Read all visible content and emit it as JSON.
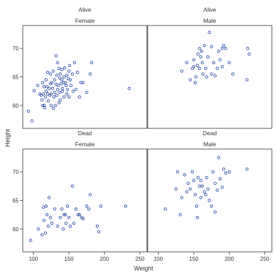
{
  "chart_data": {
    "type": "scatter",
    "layout": "2x2 panel grid with shared axes",
    "xlabel": "Weight",
    "ylabel": "Height",
    "xlim": [
      85,
      260
    ],
    "ylim": [
      56,
      74
    ],
    "x_ticks": [
      100,
      150,
      200,
      250
    ],
    "y_ticks": [
      60,
      65,
      70
    ],
    "grid": false,
    "marker_color": "#2E4FA8",
    "panels": [
      {
        "row_label": "Alive",
        "col_label": "Female",
        "points": [
          [
            93,
            59
          ],
          [
            98,
            57.3
          ],
          [
            101,
            62.6
          ],
          [
            106,
            63.5
          ],
          [
            109,
            62
          ],
          [
            111,
            61.8
          ],
          [
            112,
            61
          ],
          [
            113,
            60
          ],
          [
            113,
            64
          ],
          [
            114,
            62
          ],
          [
            115,
            63.3
          ],
          [
            115,
            60
          ],
          [
            116,
            59.6
          ],
          [
            117,
            61.5
          ],
          [
            118,
            64.5
          ],
          [
            118,
            62.5
          ],
          [
            119,
            63.3
          ],
          [
            120,
            62
          ],
          [
            120,
            65.8
          ],
          [
            121,
            60.8
          ],
          [
            122,
            63
          ],
          [
            123,
            61.8
          ],
          [
            124,
            65.5
          ],
          [
            124,
            63.8
          ],
          [
            125,
            62
          ],
          [
            125,
            60
          ],
          [
            126,
            64
          ],
          [
            127,
            63
          ],
          [
            128,
            66
          ],
          [
            128,
            59.5
          ],
          [
            129,
            61.5
          ],
          [
            130,
            62.3
          ],
          [
            130,
            64.5
          ],
          [
            131,
            60
          ],
          [
            132,
            68.7
          ],
          [
            132,
            63.7
          ],
          [
            133,
            65.3
          ],
          [
            133,
            61.8
          ],
          [
            134,
            67.5
          ],
          [
            134,
            62.8
          ],
          [
            135,
            63.5
          ],
          [
            136,
            66.5
          ],
          [
            136,
            60.5
          ],
          [
            137,
            64.8
          ],
          [
            137,
            62.3
          ],
          [
            138,
            65.5
          ],
          [
            138,
            61
          ],
          [
            139,
            63.8
          ],
          [
            140,
            64.5
          ],
          [
            140,
            66.3
          ],
          [
            141,
            63
          ],
          [
            141,
            62.5
          ],
          [
            142,
            64
          ],
          [
            143,
            65
          ],
          [
            143,
            61.5
          ],
          [
            144,
            66.6
          ],
          [
            145,
            64
          ],
          [
            146,
            63.5
          ],
          [
            147,
            62
          ],
          [
            147,
            65.3
          ],
          [
            148,
            62.8
          ],
          [
            149,
            64.7
          ],
          [
            150,
            66
          ],
          [
            150,
            61.5
          ],
          [
            151,
            67
          ],
          [
            152,
            64.5
          ],
          [
            153,
            63.5
          ],
          [
            155,
            65.5
          ],
          [
            156,
            62.5
          ],
          [
            158,
            67.5
          ],
          [
            160,
            62.8
          ],
          [
            162,
            65.8
          ],
          [
            165,
            61.5
          ],
          [
            167,
            64
          ],
          [
            170,
            64
          ],
          [
            175,
            62.3
          ],
          [
            180,
            65.5
          ],
          [
            182,
            67.5
          ],
          [
            235,
            63
          ]
        ]
      },
      {
        "row_label": "Alive",
        "col_label": "Male",
        "points": [
          [
            133,
            66
          ],
          [
            140,
            67.5
          ],
          [
            145,
            64.5
          ],
          [
            148,
            66.5
          ],
          [
            150,
            68
          ],
          [
            150,
            66.8
          ],
          [
            152,
            64
          ],
          [
            153,
            65
          ],
          [
            155,
            67
          ],
          [
            156,
            69
          ],
          [
            158,
            66.5
          ],
          [
            158,
            70
          ],
          [
            160,
            68.5
          ],
          [
            161,
            69.5
          ],
          [
            162,
            67.5
          ],
          [
            163,
            65.5
          ],
          [
            165,
            70.5
          ],
          [
            167,
            66.5
          ],
          [
            168,
            65
          ],
          [
            170,
            68.5
          ],
          [
            172,
            72.8
          ],
          [
            175,
            65.5
          ],
          [
            175,
            70.3
          ],
          [
            178,
            67.5
          ],
          [
            180,
            65.2
          ],
          [
            183,
            66.5
          ],
          [
            185,
            69.5
          ],
          [
            187,
            68
          ],
          [
            190,
            66.8
          ],
          [
            190,
            70
          ],
          [
            192,
            70.5
          ],
          [
            195,
            70
          ],
          [
            200,
            67.5
          ],
          [
            205,
            65.5
          ],
          [
            225,
            64.5
          ],
          [
            226,
            70
          ],
          [
            228,
            69
          ]
        ]
      },
      {
        "row_label": "Dead",
        "col_label": "Female",
        "points": [
          [
            96,
            58
          ],
          [
            107,
            60
          ],
          [
            112,
            59
          ],
          [
            114,
            63.8
          ],
          [
            115,
            61.5
          ],
          [
            117,
            59.3
          ],
          [
            118,
            64
          ],
          [
            119,
            62.5
          ],
          [
            121,
            60.5
          ],
          [
            122,
            65.5
          ],
          [
            124,
            62
          ],
          [
            126,
            61
          ],
          [
            130,
            63.5
          ],
          [
            134,
            60.5
          ],
          [
            138,
            62
          ],
          [
            140,
            63.5
          ],
          [
            142,
            60
          ],
          [
            143,
            62.5
          ],
          [
            145,
            62.5
          ],
          [
            146,
            61
          ],
          [
            148,
            64
          ],
          [
            150,
            62
          ],
          [
            152,
            60.5
          ],
          [
            155,
            67.5
          ],
          [
            157,
            61
          ],
          [
            160,
            63.5
          ],
          [
            163,
            62.5
          ],
          [
            165,
            62.5
          ],
          [
            168,
            62
          ],
          [
            170,
            61.8
          ],
          [
            175,
            64
          ],
          [
            178,
            63.5
          ],
          [
            180,
            66
          ],
          [
            190,
            60.5
          ],
          [
            192,
            59.5
          ],
          [
            195,
            64
          ],
          [
            230,
            64
          ]
        ]
      },
      {
        "row_label": "Dead",
        "col_label": "Male",
        "points": [
          [
            110,
            63.5
          ],
          [
            125,
            67
          ],
          [
            127,
            70
          ],
          [
            131,
            62.5
          ],
          [
            133,
            65.5
          ],
          [
            137,
            69.5
          ],
          [
            140,
            66.5
          ],
          [
            142,
            68
          ],
          [
            145,
            67
          ],
          [
            148,
            70
          ],
          [
            150,
            68.5
          ],
          [
            152,
            66
          ],
          [
            154,
            64
          ],
          [
            155,
            62
          ],
          [
            156,
            69
          ],
          [
            158,
            67.5
          ],
          [
            160,
            65.5
          ],
          [
            160,
            68.5
          ],
          [
            162,
            67.5
          ],
          [
            165,
            66.5
          ],
          [
            167,
            66
          ],
          [
            168,
            69
          ],
          [
            170,
            67
          ],
          [
            172,
            65
          ],
          [
            175,
            64
          ],
          [
            177,
            70
          ],
          [
            180,
            63
          ],
          [
            180,
            68
          ],
          [
            183,
            66.8
          ],
          [
            185,
            72.5
          ],
          [
            187,
            68.8
          ],
          [
            190,
            67.3
          ],
          [
            192,
            70.5
          ],
          [
            195,
            69.8
          ],
          [
            200,
            70
          ],
          [
            225,
            70.5
          ]
        ]
      }
    ]
  }
}
